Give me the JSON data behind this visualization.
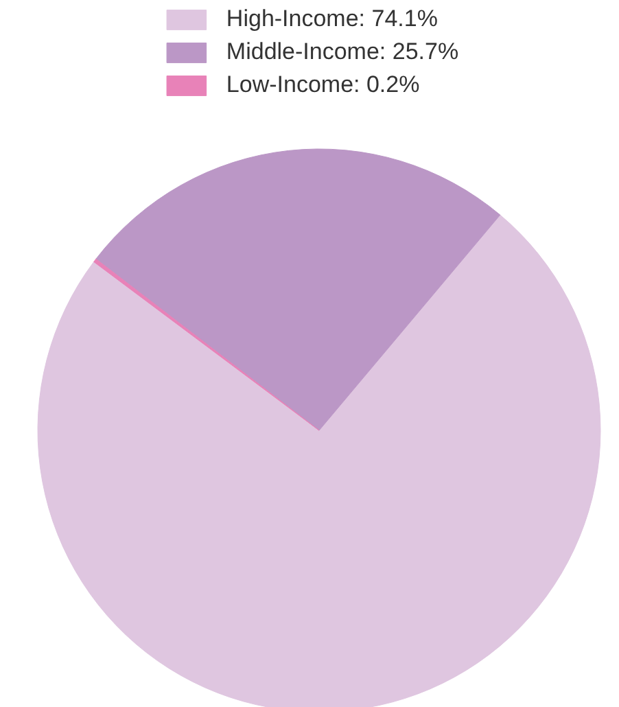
{
  "chart_data": {
    "type": "pie",
    "categories": [
      "High-Income",
      "Middle-Income",
      "Low-Income"
    ],
    "values": [
      74.1,
      25.7,
      0.2
    ],
    "value_labels": [
      "74.1%",
      "25.7%",
      "0.2%"
    ],
    "colors": [
      "#dfc6e0",
      "#bb97c6",
      "#e882b8"
    ],
    "legend": "top"
  }
}
